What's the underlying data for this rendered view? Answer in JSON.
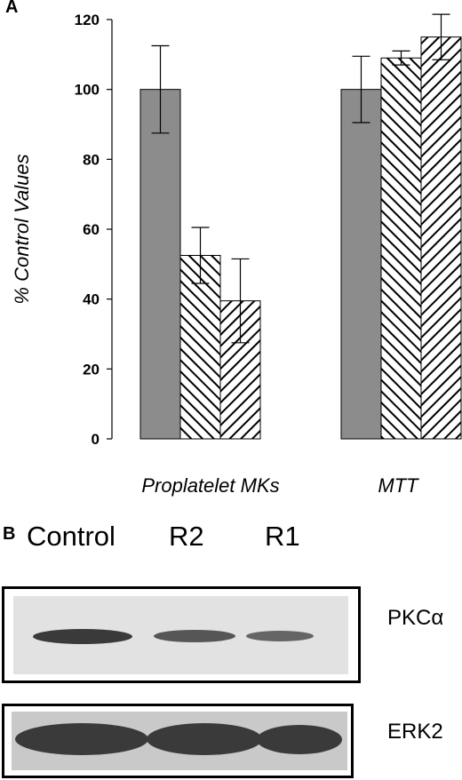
{
  "panels": {
    "a_label": "A",
    "b_label": "B"
  },
  "chart_data": {
    "type": "bar",
    "title": "",
    "xlabel": "",
    "ylabel": "% Control Values",
    "ylim": [
      0,
      120
    ],
    "yticks": [
      0,
      20,
      40,
      60,
      80,
      100,
      120
    ],
    "categories": [
      "Proplatelet MKs",
      "MTT"
    ],
    "series": [
      {
        "values": [
          100,
          100
        ],
        "errors": [
          12.5,
          9.5
        ],
        "fill": "gray"
      },
      {
        "values": [
          52.5,
          109
        ],
        "errors": [
          8,
          2
        ],
        "fill": "hatch-back-diagonal"
      },
      {
        "values": [
          39.5,
          115
        ],
        "errors": [
          12,
          6.5
        ],
        "fill": "hatch-forward-diagonal"
      }
    ],
    "grid": false,
    "legend": "none"
  },
  "blot": {
    "lanes": [
      "Control",
      "R2",
      "R1"
    ],
    "proteins": [
      {
        "name": "PKCα",
        "band_intensity": [
          1.0,
          0.8,
          0.7
        ]
      },
      {
        "name": "ERK2",
        "band_intensity": [
          1.0,
          1.0,
          1.0
        ]
      }
    ]
  },
  "colors": {
    "bar_gray": "#8c8c8c",
    "hatch": "#000000",
    "pkc_membrane": "#e2e2e2",
    "erk_membrane": "#c9c9c9",
    "band": "#3a3a3a"
  }
}
